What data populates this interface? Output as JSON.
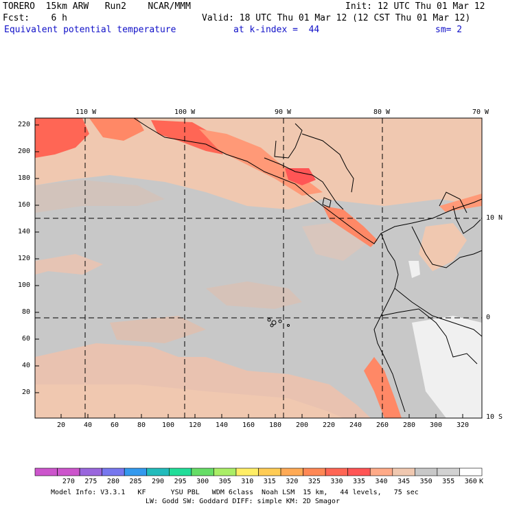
{
  "header": {
    "model": "TORERO  15km ARW   Run2    NCAR/MMM",
    "init": "Init: 12 UTC Thu 01 Mar 12",
    "fcst": "Fcst:    6 h",
    "valid": "Valid: 18 UTC Thu 01 Mar 12 (12 CST Thu 01 Mar 12)",
    "field": "Equivalent potential temperature",
    "level": "at k-index =  44",
    "smooth": "sm= 2"
  },
  "map": {
    "lon_labels": [
      "110 W",
      "100 W",
      "90 W",
      "80 W",
      "70 W"
    ],
    "lat_labels": [
      "10 N",
      "0",
      "10 S"
    ],
    "y_ticks": [
      "220",
      "200",
      "180",
      "160",
      "140",
      "120",
      "100",
      "80",
      "60",
      "40",
      "20"
    ],
    "x_ticks": [
      "20",
      "40",
      "60",
      "80",
      "100",
      "120",
      "140",
      "160",
      "180",
      "200",
      "220",
      "240",
      "260",
      "280",
      "300",
      "320"
    ]
  },
  "colorbar": {
    "labels": [
      "270",
      "275",
      "280",
      "285",
      "290",
      "295",
      "300",
      "305",
      "310",
      "315",
      "320",
      "325",
      "330",
      "335",
      "340",
      "345",
      "350",
      "355",
      "360"
    ],
    "unit": "K",
    "colors": [
      "#cc55cc",
      "#9966dd",
      "#7777ee",
      "#3399ee",
      "#22bbbb",
      "#22dd99",
      "#66dd66",
      "#aaee66",
      "#ffee66",
      "#ffcc55",
      "#ffaa55",
      "#ff8855",
      "#ff6655",
      "#ff5555",
      "#ffaa88",
      "#f0c8b0",
      "#c8c8c8",
      "#d2d2d2",
      "#f0f0f0"
    ]
  },
  "footer": {
    "line1": "Model Info: V3.3.1   KF      YSU PBL   WDM 6class  Noah LSM  15 km,   44 levels,   75 sec",
    "line2": "LW: Godd SW: Goddard DIFF: simple KM: 2D Smagor"
  },
  "colors": {
    "field_low": "#c8c8c8",
    "field_mid": "#f0c8b0",
    "field_high": "#ff6655",
    "land_cold": "#f0f0f0",
    "header_blue": "#1010c8"
  }
}
